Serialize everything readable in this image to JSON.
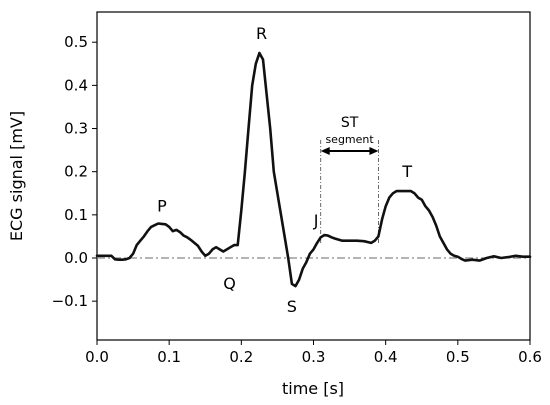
{
  "chart_data": {
    "type": "line",
    "title": "",
    "xlabel": "time [s]",
    "ylabel": "ECG signal [mV]",
    "xlim": [
      0.0,
      0.6
    ],
    "ylim": [
      -0.19,
      0.57
    ],
    "xticks": [
      "0.0",
      "0.1",
      "0.2",
      "0.3",
      "0.4",
      "0.5",
      "0.6"
    ],
    "yticks": [
      "−0.1",
      "0.0",
      "0.1",
      "0.2",
      "0.3",
      "0.4",
      "0.5"
    ],
    "grid": false,
    "line_color": "#111111",
    "baseline": {
      "y": 0.0,
      "style": "dash-dot",
      "color": "#888888"
    },
    "series": [
      {
        "x": [
          0.0,
          0.01,
          0.02,
          0.025,
          0.03,
          0.035,
          0.04,
          0.045,
          0.05,
          0.055,
          0.06,
          0.065,
          0.07,
          0.075,
          0.08,
          0.085,
          0.09,
          0.095,
          0.1,
          0.105,
          0.11,
          0.115,
          0.12,
          0.125,
          0.13,
          0.135,
          0.14,
          0.145,
          0.15,
          0.155,
          0.16,
          0.165,
          0.17,
          0.175,
          0.18,
          0.185,
          0.19,
          0.195,
          0.2,
          0.205,
          0.21,
          0.215,
          0.22,
          0.225,
          0.23,
          0.235,
          0.24,
          0.245,
          0.25,
          0.255,
          0.26,
          0.265,
          0.27,
          0.275,
          0.28,
          0.285,
          0.29,
          0.295,
          0.3,
          0.305,
          0.31,
          0.315,
          0.32,
          0.325,
          0.33,
          0.34,
          0.35,
          0.36,
          0.37,
          0.38,
          0.385,
          0.39,
          0.395,
          0.4,
          0.405,
          0.41,
          0.415,
          0.42,
          0.425,
          0.43,
          0.435,
          0.44,
          0.445,
          0.45,
          0.455,
          0.46,
          0.465,
          0.47,
          0.475,
          0.48,
          0.485,
          0.49,
          0.495,
          0.5,
          0.505,
          0.51,
          0.52,
          0.53,
          0.54,
          0.55,
          0.56,
          0.57,
          0.58,
          0.59,
          0.6
        ],
        "y": [
          0.005,
          0.005,
          0.005,
          -0.003,
          -0.004,
          -0.004,
          -0.003,
          0.0,
          0.01,
          0.03,
          0.04,
          0.05,
          0.062,
          0.072,
          0.076,
          0.08,
          0.079,
          0.078,
          0.072,
          0.062,
          0.065,
          0.06,
          0.052,
          0.048,
          0.042,
          0.035,
          0.028,
          0.015,
          0.005,
          0.01,
          0.02,
          0.025,
          0.02,
          0.015,
          0.02,
          0.025,
          0.03,
          0.03,
          0.11,
          0.2,
          0.3,
          0.4,
          0.45,
          0.475,
          0.46,
          0.38,
          0.3,
          0.2,
          0.15,
          0.1,
          0.05,
          0.0,
          -0.06,
          -0.065,
          -0.05,
          -0.025,
          -0.01,
          0.01,
          0.02,
          0.035,
          0.048,
          0.053,
          0.052,
          0.048,
          0.045,
          0.04,
          0.04,
          0.04,
          0.039,
          0.035,
          0.04,
          0.05,
          0.09,
          0.12,
          0.14,
          0.15,
          0.155,
          0.155,
          0.155,
          0.155,
          0.155,
          0.15,
          0.14,
          0.135,
          0.12,
          0.11,
          0.095,
          0.075,
          0.05,
          0.035,
          0.02,
          0.01,
          0.005,
          0.003,
          -0.002,
          -0.006,
          -0.004,
          -0.006,
          0.0,
          0.004,
          0.0,
          0.002,
          0.005,
          0.003,
          0.003
        ]
      }
    ],
    "annotations": {
      "waves": [
        {
          "label": "P",
          "x": 0.09,
          "y": 0.085
        },
        {
          "label": "Q",
          "x": 0.185,
          "y": -0.025
        },
        {
          "label": "R",
          "x": 0.228,
          "y": 0.48
        },
        {
          "label": "S",
          "x": 0.27,
          "y": -0.07
        },
        {
          "label": "J",
          "x": 0.305,
          "y": 0.06
        },
        {
          "label": "T",
          "x": 0.43,
          "y": 0.16
        }
      ],
      "st_segment": {
        "label_top": "ST",
        "label_bottom": "segment",
        "x_start": 0.31,
        "x_end": 0.39
      }
    }
  }
}
